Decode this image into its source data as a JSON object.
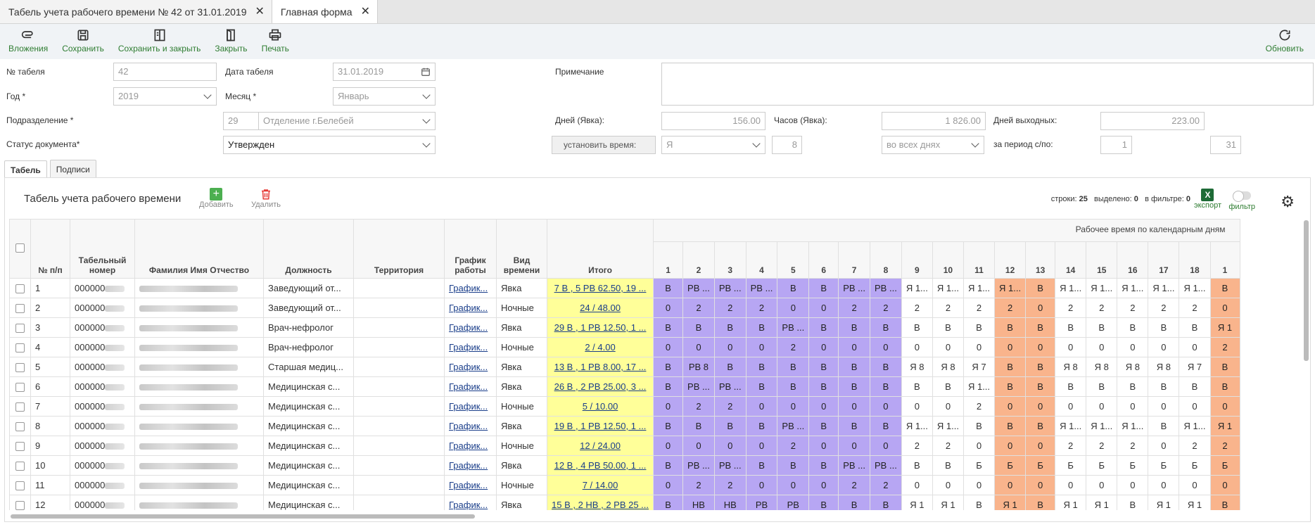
{
  "tabs": [
    {
      "label": "Табель учета рабочего времени № 42 от 31.01.2019"
    },
    {
      "label": "Главная форма"
    }
  ],
  "toolbar": {
    "attachments": "Вложения",
    "save": "Сохранить",
    "save_close": "Сохранить и закрыть",
    "close": "Закрыть",
    "print": "Печать",
    "refresh": "Обновить"
  },
  "form": {
    "tabel_no_label": "№ табеля",
    "tabel_no": "42",
    "date_label": "Дата табеля",
    "date": "31.01.2019",
    "note_label": "Примечание",
    "year_label": "Год *",
    "year": "2019",
    "month_label": "Месяц *",
    "month": "Январь",
    "dept_label": "Подразделение *",
    "dept_code": "29",
    "dept_name": "Отделение  г.Белебей",
    "days_label": "Дней (Явка):",
    "days": "156.00",
    "hours_label": "Часов (Явка):",
    "hours": "1 826.00",
    "days_off_label": "Дней выходных:",
    "days_off": "223.00",
    "status_label": "Статус документа*",
    "status": "Утвержден",
    "set_time": "установить время:",
    "time_code": "Я",
    "time_hours": "8",
    "time_scope": "во всех днях",
    "period_label": "за период с/по:",
    "period_from": "1",
    "period_to": "31"
  },
  "subtabs": [
    "Табель",
    "Подписи"
  ],
  "panel": {
    "title": "Табель учета рабочего времени",
    "add": "Добавить",
    "delete": "Удалить",
    "rows_label": "строки:",
    "rows": "25",
    "selected_label": "выделено:",
    "selected": "0",
    "filtered_label": "в фильтре:",
    "filtered": "0",
    "export": "экспорт",
    "filter": "фильтр",
    "excel_letter": "X"
  },
  "columns": {
    "np": "№ п/п",
    "tab": "Табельный номер",
    "fio": "Фамилия Имя Отчество",
    "pos": "Должность",
    "ter": "Территория",
    "sch": "График работы",
    "vid": "Вид времени",
    "itogo": "Итого",
    "days_header": "Рабочее время по календарным дням",
    "days": [
      "1",
      "2",
      "3",
      "4",
      "5",
      "6",
      "7",
      "8",
      "9",
      "10",
      "11",
      "12",
      "13",
      "14",
      "15",
      "16",
      "17",
      "18",
      "1"
    ]
  },
  "day_colors": [
    "pu",
    "pu",
    "pu",
    "pu",
    "pu",
    "pu",
    "pu",
    "pu",
    "wh",
    "wh",
    "wh",
    "or",
    "or",
    "wh",
    "wh",
    "wh",
    "wh",
    "wh",
    "or"
  ],
  "rows": [
    {
      "n": "1",
      "tab": "000000",
      "pos": "Заведующий от...",
      "sch": "График...",
      "vid": "Явка",
      "itogo": "7 В , 5 РВ 62.50, 19 ...",
      "d": [
        "В",
        "РВ ...",
        "РВ ...",
        "РВ ...",
        "В",
        "В",
        "РВ ...",
        "РВ ...",
        "Я 1...",
        "Я 1...",
        "Я 1...",
        "Я 1...",
        "В",
        "Я 1...",
        "Я 1...",
        "Я 1...",
        "Я 1...",
        "Я 1...",
        "В"
      ]
    },
    {
      "n": "2",
      "tab": "000000",
      "pos": "Заведующий от...",
      "sch": "График...",
      "vid": "Ночные",
      "itogo": "24 / 48.00",
      "d": [
        "0",
        "2",
        "2",
        "2",
        "0",
        "0",
        "2",
        "2",
        "2",
        "2",
        "2",
        "2",
        "0",
        "2",
        "2",
        "2",
        "2",
        "2",
        "0"
      ]
    },
    {
      "n": "3",
      "tab": "000000",
      "pos": "Врач-нефролог",
      "sch": "График...",
      "vid": "Явка",
      "itogo": "29 В , 1 РВ 12.50, 1 ...",
      "d": [
        "В",
        "В",
        "В",
        "В",
        "РВ ...",
        "В",
        "В",
        "В",
        "В",
        "В",
        "В",
        "В",
        "В",
        "В",
        "В",
        "В",
        "В",
        "В",
        "Я 1"
      ]
    },
    {
      "n": "4",
      "tab": "000000",
      "pos": "Врач-нефролог",
      "sch": "График...",
      "vid": "Ночные",
      "itogo": "2 / 4.00",
      "d": [
        "0",
        "0",
        "0",
        "0",
        "2",
        "0",
        "0",
        "0",
        "0",
        "0",
        "0",
        "0",
        "0",
        "0",
        "0",
        "0",
        "0",
        "0",
        "2"
      ]
    },
    {
      "n": "5",
      "tab": "000000",
      "pos": "Старшая медиц...",
      "sch": "График...",
      "vid": "Явка",
      "itogo": "13 В , 1 РВ 8.00, 17 ...",
      "d": [
        "В",
        "РВ 8",
        "В",
        "В",
        "В",
        "В",
        "В",
        "В",
        "Я 8",
        "Я 8",
        "Я 7",
        "В",
        "В",
        "Я 8",
        "Я 8",
        "Я 8",
        "Я 8",
        "Я 7",
        "В"
      ]
    },
    {
      "n": "6",
      "tab": "000000",
      "pos": "Медицинская с...",
      "sch": "График...",
      "vid": "Явка",
      "itogo": "26 В , 2 РВ 25.00, 3 ...",
      "d": [
        "В",
        "РВ ...",
        "РВ ...",
        "В",
        "В",
        "В",
        "В",
        "В",
        "В",
        "В",
        "Я 1...",
        "В",
        "В",
        "В",
        "В",
        "В",
        "В",
        "В",
        "В"
      ]
    },
    {
      "n": "7",
      "tab": "000000",
      "pos": "Медицинская с...",
      "sch": "График...",
      "vid": "Ночные",
      "itogo": "5 / 10.00",
      "d": [
        "0",
        "2",
        "2",
        "0",
        "0",
        "0",
        "0",
        "0",
        "0",
        "0",
        "2",
        "0",
        "0",
        "0",
        "0",
        "0",
        "0",
        "0",
        "0"
      ]
    },
    {
      "n": "8",
      "tab": "000000",
      "pos": "Медицинская с...",
      "sch": "График...",
      "vid": "Явка",
      "itogo": "19 В , 1 РВ 12.50, 1 ...",
      "d": [
        "В",
        "В",
        "В",
        "В",
        "РВ ...",
        "В",
        "В",
        "В",
        "Я 1...",
        "Я 1...",
        "В",
        "В",
        "В",
        "Я 1...",
        "Я 1...",
        "Я 1...",
        "В",
        "Я 1...",
        "Я 1"
      ]
    },
    {
      "n": "9",
      "tab": "000000",
      "pos": "Медицинская с...",
      "sch": "График...",
      "vid": "Ночные",
      "itogo": "12 / 24.00",
      "d": [
        "0",
        "0",
        "0",
        "0",
        "2",
        "0",
        "0",
        "0",
        "2",
        "2",
        "0",
        "0",
        "0",
        "2",
        "2",
        "2",
        "0",
        "2",
        "2"
      ]
    },
    {
      "n": "10",
      "tab": "000000",
      "pos": "Медицинская с...",
      "sch": "График...",
      "vid": "Явка",
      "itogo": "12 В , 4 РВ 50.00, 1 ...",
      "d": [
        "В",
        "РВ ...",
        "РВ ...",
        "В",
        "В",
        "В",
        "РВ ...",
        "РВ ...",
        "В",
        "В",
        "Б",
        "Б",
        "Б",
        "Б",
        "Б",
        "Б",
        "Б",
        "Б",
        "Б"
      ]
    },
    {
      "n": "11",
      "tab": "000000",
      "pos": "Медицинская с...",
      "sch": "График...",
      "vid": "Ночные",
      "itogo": "7 / 14.00",
      "d": [
        "0",
        "2",
        "2",
        "0",
        "0",
        "0",
        "2",
        "2",
        "0",
        "0",
        "0",
        "0",
        "0",
        "0",
        "0",
        "0",
        "0",
        "0",
        "0"
      ]
    },
    {
      "n": "12",
      "tab": "000000",
      "pos": "Медицинская с...",
      "sch": "График...",
      "vid": "Явка",
      "itogo": "15 В , 2 НВ , 2 РВ 25 ...",
      "d": [
        "В",
        "НВ",
        "НВ",
        "РВ",
        "РВ",
        "В",
        "В",
        "В",
        "Я 1",
        "Я 1",
        "В",
        "Я 1",
        "В",
        "Я 1",
        "Я 1",
        "В",
        "Я 1",
        "Я 1",
        "В"
      ]
    }
  ]
}
